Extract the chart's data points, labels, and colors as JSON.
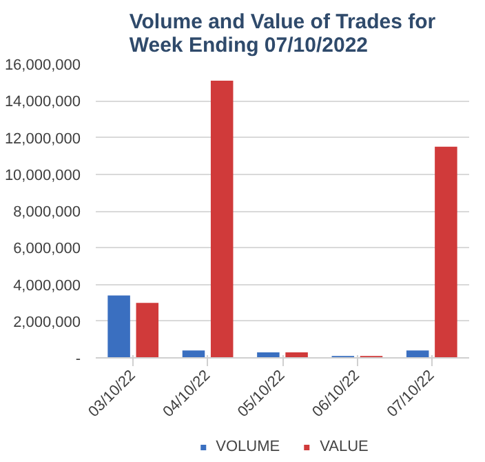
{
  "chart_data": {
    "type": "bar",
    "title": "Volume and Value of Trades for Week Ending 07/10/2022",
    "categories": [
      "03/10/22",
      "04/10/22",
      "05/10/22",
      "06/10/22",
      "07/10/22"
    ],
    "series": [
      {
        "name": "VOLUME",
        "color": "#3a6fc0",
        "values": [
          3400000,
          400000,
          300000,
          100000,
          400000
        ]
      },
      {
        "name": "VALUE",
        "color": "#d03a3a",
        "values": [
          3000000,
          15100000,
          300000,
          100000,
          11500000
        ]
      }
    ],
    "ylim": [
      0,
      16000000
    ],
    "yticks": [
      {
        "value": 0,
        "label": "-"
      },
      {
        "value": 2000000,
        "label": "2,000,000"
      },
      {
        "value": 4000000,
        "label": "4,000,000"
      },
      {
        "value": 6000000,
        "label": "6,000,000"
      },
      {
        "value": 8000000,
        "label": "8,000,000"
      },
      {
        "value": 10000000,
        "label": "10,000,000"
      },
      {
        "value": 12000000,
        "label": "12,000,000"
      },
      {
        "value": 14000000,
        "label": "14,000,000"
      },
      {
        "value": 16000000,
        "label": "16,000,000"
      }
    ],
    "grid": "y",
    "legend": "bottom"
  }
}
